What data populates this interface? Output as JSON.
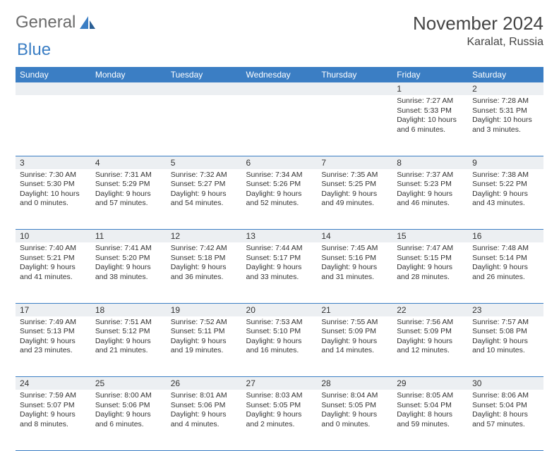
{
  "brand": {
    "part1": "General",
    "part2": "Blue"
  },
  "title": "November 2024",
  "location": "Karalat, Russia",
  "colors": {
    "header_bg": "#3b7ec4",
    "header_text": "#ffffff",
    "daynum_bg": "#eceff2",
    "border": "#3b7ec4",
    "body_text": "#333333",
    "title_text": "#444444",
    "logo_gray": "#6b6b6b",
    "logo_blue": "#3b7ec4",
    "page_bg": "#ffffff"
  },
  "typography": {
    "title_fontsize": 26,
    "location_fontsize": 16,
    "dayhead_fontsize": 12,
    "daynum_fontsize": 12,
    "info_fontsize": 10.5
  },
  "dayHeaders": [
    "Sunday",
    "Monday",
    "Tuesday",
    "Wednesday",
    "Thursday",
    "Friday",
    "Saturday"
  ],
  "weeks": [
    [
      null,
      null,
      null,
      null,
      null,
      {
        "n": "1",
        "sr": "7:27 AM",
        "ss": "5:33 PM",
        "dl": "10 hours and 6 minutes."
      },
      {
        "n": "2",
        "sr": "7:28 AM",
        "ss": "5:31 PM",
        "dl": "10 hours and 3 minutes."
      }
    ],
    [
      {
        "n": "3",
        "sr": "7:30 AM",
        "ss": "5:30 PM",
        "dl": "10 hours and 0 minutes."
      },
      {
        "n": "4",
        "sr": "7:31 AM",
        "ss": "5:29 PM",
        "dl": "9 hours and 57 minutes."
      },
      {
        "n": "5",
        "sr": "7:32 AM",
        "ss": "5:27 PM",
        "dl": "9 hours and 54 minutes."
      },
      {
        "n": "6",
        "sr": "7:34 AM",
        "ss": "5:26 PM",
        "dl": "9 hours and 52 minutes."
      },
      {
        "n": "7",
        "sr": "7:35 AM",
        "ss": "5:25 PM",
        "dl": "9 hours and 49 minutes."
      },
      {
        "n": "8",
        "sr": "7:37 AM",
        "ss": "5:23 PM",
        "dl": "9 hours and 46 minutes."
      },
      {
        "n": "9",
        "sr": "7:38 AM",
        "ss": "5:22 PM",
        "dl": "9 hours and 43 minutes."
      }
    ],
    [
      {
        "n": "10",
        "sr": "7:40 AM",
        "ss": "5:21 PM",
        "dl": "9 hours and 41 minutes."
      },
      {
        "n": "11",
        "sr": "7:41 AM",
        "ss": "5:20 PM",
        "dl": "9 hours and 38 minutes."
      },
      {
        "n": "12",
        "sr": "7:42 AM",
        "ss": "5:18 PM",
        "dl": "9 hours and 36 minutes."
      },
      {
        "n": "13",
        "sr": "7:44 AM",
        "ss": "5:17 PM",
        "dl": "9 hours and 33 minutes."
      },
      {
        "n": "14",
        "sr": "7:45 AM",
        "ss": "5:16 PM",
        "dl": "9 hours and 31 minutes."
      },
      {
        "n": "15",
        "sr": "7:47 AM",
        "ss": "5:15 PM",
        "dl": "9 hours and 28 minutes."
      },
      {
        "n": "16",
        "sr": "7:48 AM",
        "ss": "5:14 PM",
        "dl": "9 hours and 26 minutes."
      }
    ],
    [
      {
        "n": "17",
        "sr": "7:49 AM",
        "ss": "5:13 PM",
        "dl": "9 hours and 23 minutes."
      },
      {
        "n": "18",
        "sr": "7:51 AM",
        "ss": "5:12 PM",
        "dl": "9 hours and 21 minutes."
      },
      {
        "n": "19",
        "sr": "7:52 AM",
        "ss": "5:11 PM",
        "dl": "9 hours and 19 minutes."
      },
      {
        "n": "20",
        "sr": "7:53 AM",
        "ss": "5:10 PM",
        "dl": "9 hours and 16 minutes."
      },
      {
        "n": "21",
        "sr": "7:55 AM",
        "ss": "5:09 PM",
        "dl": "9 hours and 14 minutes."
      },
      {
        "n": "22",
        "sr": "7:56 AM",
        "ss": "5:09 PM",
        "dl": "9 hours and 12 minutes."
      },
      {
        "n": "23",
        "sr": "7:57 AM",
        "ss": "5:08 PM",
        "dl": "9 hours and 10 minutes."
      }
    ],
    [
      {
        "n": "24",
        "sr": "7:59 AM",
        "ss": "5:07 PM",
        "dl": "9 hours and 8 minutes."
      },
      {
        "n": "25",
        "sr": "8:00 AM",
        "ss": "5:06 PM",
        "dl": "9 hours and 6 minutes."
      },
      {
        "n": "26",
        "sr": "8:01 AM",
        "ss": "5:06 PM",
        "dl": "9 hours and 4 minutes."
      },
      {
        "n": "27",
        "sr": "8:03 AM",
        "ss": "5:05 PM",
        "dl": "9 hours and 2 minutes."
      },
      {
        "n": "28",
        "sr": "8:04 AM",
        "ss": "5:05 PM",
        "dl": "9 hours and 0 minutes."
      },
      {
        "n": "29",
        "sr": "8:05 AM",
        "ss": "5:04 PM",
        "dl": "8 hours and 59 minutes."
      },
      {
        "n": "30",
        "sr": "8:06 AM",
        "ss": "5:04 PM",
        "dl": "8 hours and 57 minutes."
      }
    ]
  ],
  "labels": {
    "sunrise": "Sunrise: ",
    "sunset": "Sunset: ",
    "daylight": "Daylight: "
  }
}
